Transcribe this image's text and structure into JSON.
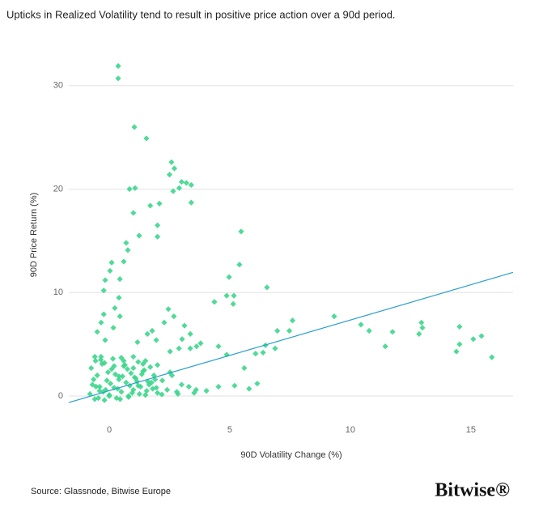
{
  "chart_data": {
    "type": "scatter",
    "title": "Upticks in Realized Volatility tend to result in positive price action over a 90d period.",
    "x_label": "90D Volatility Change (%)",
    "y_label": "90D Price Return (%)",
    "source": "Source: Glassnode, Bitwise Europe",
    "brand": "Bitwise®",
    "xlim": [
      -1.68,
      16.75
    ],
    "ylim": [
      -0.86,
      32.8
    ],
    "xticks": [
      0,
      5,
      10,
      15
    ],
    "yticks": [
      0,
      10,
      20,
      30
    ],
    "grid": true,
    "series": [
      {
        "color": "#3dd68c",
        "x": [
          0.37,
          0.37,
          1.04,
          1.54,
          2.58,
          2.7,
          2.5,
          3.0,
          3.2,
          3.4,
          2.9,
          2.65,
          3.4,
          0.84,
          1.07,
          1.0,
          1.7,
          2.08,
          2.0,
          2.0,
          1.24,
          5.47,
          0.7,
          0.77,
          0.6,
          0.1,
          0.03,
          5.4,
          4.97,
          -0.17,
          0.44,
          6.54,
          -0.23,
          4.87,
          5.17,
          5.14,
          4.36,
          2.45,
          0.4,
          0.23,
          9.33,
          10.44,
          10.78,
          11.75,
          11.45,
          12.95,
          12.99,
          12.85,
          14.53,
          14.53,
          14.4,
          15.1,
          15.44,
          15.87,
          7.6,
          6.97,
          7.47,
          6.88,
          6.38,
          6.07,
          6.48,
          4.87,
          4.53,
          3.62,
          3.79,
          3.36,
          2.89,
          2.52,
          2.28,
          2.68,
          3.12,
          3.36,
          3.02,
          1.78,
          1.58,
          1.95,
          1.17,
          -0.23,
          -0.34,
          -0.5,
          0.44,
          0.17,
          -0.17,
          5.6,
          6.14,
          5.8,
          5.2,
          4.53,
          4.03,
          3.52,
          2.85,
          2.18,
          2.52,
          2.0,
          1.5,
          1.0,
          0.5,
          -0.34,
          -0.57,
          -0.8,
          -0.7,
          -0.6,
          -0.5,
          -0.4,
          -0.3,
          -0.2,
          -0.1,
          0.0,
          0.1,
          0.2,
          0.3,
          0.4,
          0.5,
          0.6,
          0.7,
          0.8,
          0.9,
          1.0,
          1.1,
          1.2,
          1.3,
          1.4,
          1.5,
          1.6,
          1.7,
          1.8,
          1.9,
          2.0,
          -0.75,
          -0.55,
          -0.35,
          -0.15,
          0.05,
          0.25,
          0.45,
          0.65,
          0.85,
          1.05,
          1.25,
          1.45,
          1.65,
          1.85,
          -0.65,
          -0.45,
          -0.25,
          -0.05,
          0.15,
          0.35,
          0.55,
          0.75,
          0.95,
          1.15,
          1.35,
          1.55,
          1.75,
          1.95,
          2.2,
          2.4,
          2.6,
          2.8,
          3.0,
          3.3,
          3.6,
          -0.6,
          -0.2,
          0.2,
          0.6,
          1.0,
          1.4,
          -0.4,
          0.0,
          0.4,
          0.8,
          1.2
        ],
        "y": [
          31.9,
          30.7,
          26.0,
          24.9,
          22.6,
          22.0,
          21.4,
          20.7,
          20.6,
          20.4,
          20.1,
          19.8,
          18.7,
          20.0,
          20.1,
          17.7,
          18.4,
          18.6,
          16.5,
          15.4,
          15.5,
          15.9,
          14.8,
          14.1,
          13.0,
          12.9,
          12.1,
          12.7,
          11.5,
          11.2,
          11.3,
          10.5,
          10.2,
          9.7,
          9.7,
          8.9,
          9.1,
          8.4,
          9.5,
          8.5,
          7.7,
          6.9,
          6.3,
          6.2,
          4.8,
          7.1,
          6.6,
          6.0,
          6.7,
          5.0,
          4.3,
          5.5,
          5.8,
          3.75,
          7.3,
          6.3,
          6.3,
          4.6,
          4.2,
          4.1,
          4.9,
          4.0,
          4.8,
          4.8,
          5.1,
          4.6,
          4.6,
          4.3,
          7.1,
          7.7,
          6.8,
          6.0,
          5.5,
          6.3,
          6.0,
          5.4,
          5.2,
          7.9,
          7.1,
          6.2,
          7.7,
          6.6,
          5.4,
          2.7,
          1.2,
          0.7,
          1.0,
          0.9,
          0.5,
          0.3,
          0.2,
          0.15,
          2.3,
          3.0,
          3.4,
          3.8,
          3.7,
          3.8,
          3.4,
          0.2,
          1.1,
          -0.3,
          2.0,
          0.5,
          3.1,
          -0.4,
          1.5,
          0.0,
          2.6,
          0.8,
          -0.2,
          1.9,
          0.4,
          2.9,
          1.3,
          -0.1,
          2.2,
          0.6,
          1.7,
          3.3,
          0.9,
          2.4,
          0.1,
          1.4,
          2.8,
          0.7,
          1.6,
          0.3,
          2.7,
          0.9,
          3.5,
          0.6,
          1.2,
          2.1,
          -0.3,
          3.0,
          1.0,
          1.8,
          0.2,
          2.5,
          1.1,
          2.0,
          1.6,
          -0.2,
          0.4,
          2.3,
          3.6,
          0.7,
          1.9,
          2.6,
          0.3,
          1.4,
          2.1,
          0.5,
          1.3,
          0.8,
          1.5,
          0.6,
          2.0,
          0.4,
          1.1,
          0.9,
          0.6,
          3.8,
          3.2,
          2.9,
          3.4,
          2.7,
          3.1,
          0.9,
          0.1,
          1.6,
          0.0,
          1.0
        ]
      }
    ],
    "trendline": {
      "color": "#2a9fc9",
      "x": [
        -1.68,
        16.75
      ],
      "y": [
        -0.63,
        11.95
      ]
    }
  }
}
